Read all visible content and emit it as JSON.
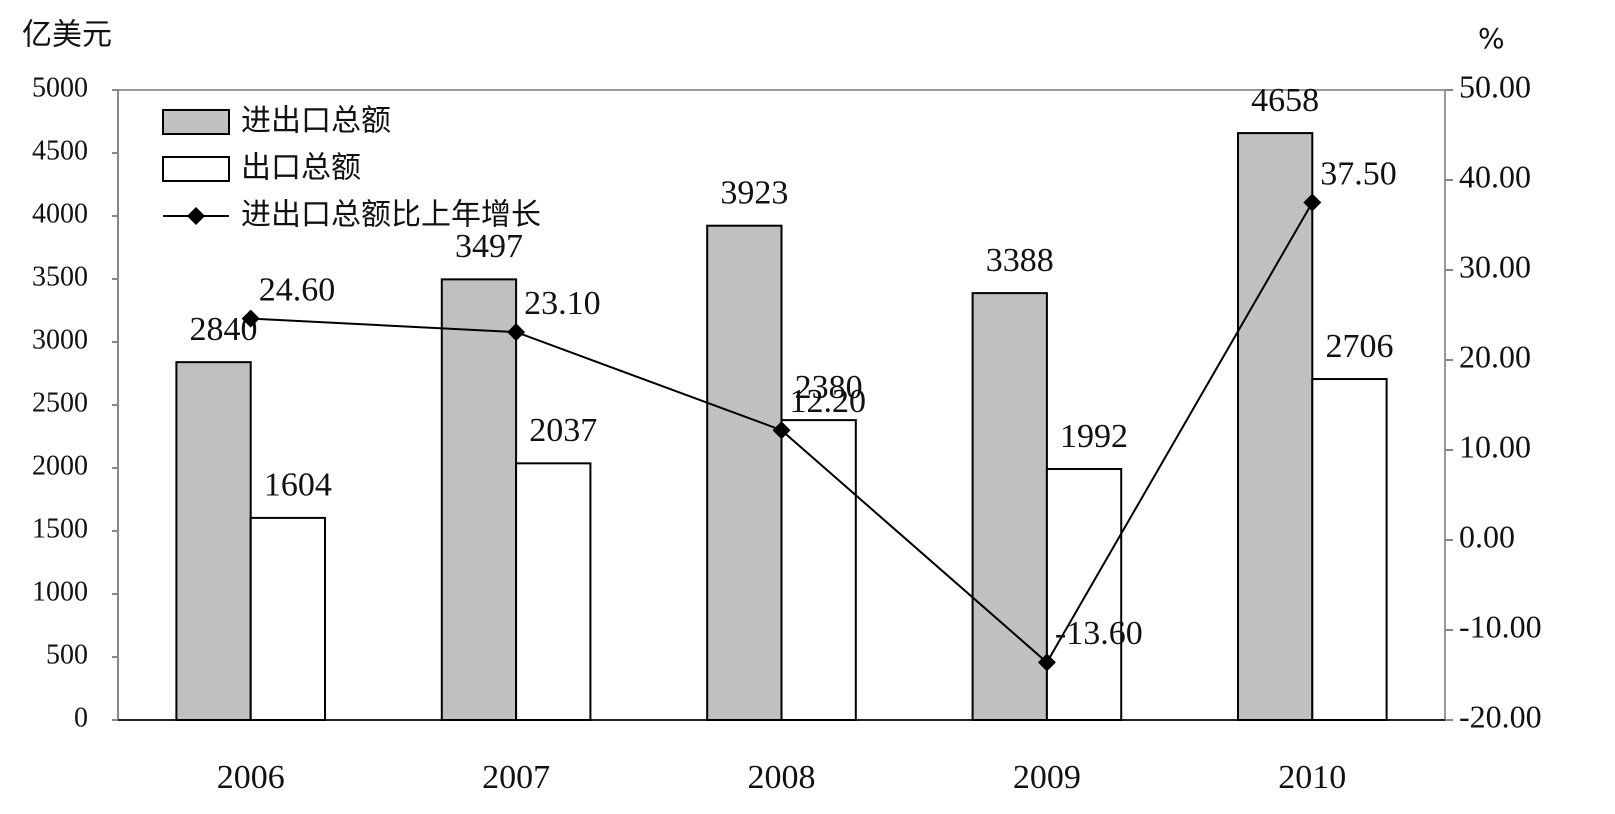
{
  "chart_data": {
    "type": "bar",
    "y_label": "亿美元",
    "y2_label": "%",
    "categories": [
      "2006",
      "2007",
      "2008",
      "2009",
      "2010"
    ],
    "series": [
      {
        "name": "进出口总额",
        "type": "bar",
        "color": "#c0c0c0",
        "values": [
          2840,
          3497,
          3923,
          3388,
          4658
        ]
      },
      {
        "name": "出口总额",
        "type": "bar",
        "color": "#ffffff",
        "values": [
          1604,
          2037,
          2380,
          1992,
          2706
        ]
      },
      {
        "name": "进出口总额比上年增长",
        "type": "line",
        "axis": "y2",
        "color": "#000000",
        "values": [
          24.6,
          23.1,
          12.2,
          -13.6,
          37.5
        ],
        "value_labels": [
          "24.60",
          "23.10",
          "12.20",
          "-13.60",
          "37.50"
        ]
      }
    ],
    "ylim": [
      0,
      5000
    ],
    "yticks": [
      0,
      500,
      1000,
      1500,
      2000,
      2500,
      3000,
      3500,
      4000,
      4500,
      5000
    ],
    "y2lim": [
      -20,
      50
    ],
    "y2ticks": [
      {
        "value": -20,
        "label": "-20.00"
      },
      {
        "value": -10,
        "label": "-10.00"
      },
      {
        "value": 0,
        "label": "0.00"
      },
      {
        "value": 10,
        "label": "10.00"
      },
      {
        "value": 20,
        "label": "20.00"
      },
      {
        "value": 30,
        "label": "30.00"
      },
      {
        "value": 40,
        "label": "40.00"
      },
      {
        "value": 50,
        "label": "50.00"
      }
    ],
    "legend": "upper left"
  }
}
